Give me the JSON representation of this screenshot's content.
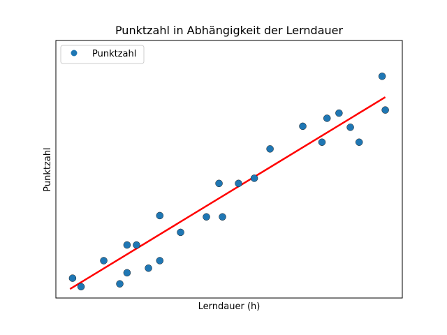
{
  "chart_data": {
    "type": "scatter",
    "title": "Punktzahl in Abhängigkeit der Lerndauer",
    "xlabel": "Lerndauer (h)",
    "ylabel": "Punktzahl",
    "xticks": "hidden",
    "yticks": "hidden",
    "grid": false,
    "legend": {
      "placement": "top-left",
      "entries": [
        "Punktzahl"
      ]
    },
    "xlim": [
      0,
      110
    ],
    "ylim": [
      0,
      100
    ],
    "colors": {
      "points": "#1f77b4",
      "point_edge": "#1a1a1a",
      "fit_line": "#ff0000",
      "axes": "#000000",
      "background": "#ffffff"
    },
    "series": [
      {
        "name": "Punktzahl",
        "kind": "scatter",
        "points": [
          {
            "x": 5.3,
            "y": 7.7
          },
          {
            "x": 8.0,
            "y": 4.4
          },
          {
            "x": 15.2,
            "y": 14.5
          },
          {
            "x": 20.3,
            "y": 5.5
          },
          {
            "x": 22.6,
            "y": 9.8
          },
          {
            "x": 22.6,
            "y": 20.6
          },
          {
            "x": 25.6,
            "y": 20.6
          },
          {
            "x": 29.4,
            "y": 11.6
          },
          {
            "x": 33.0,
            "y": 14.5
          },
          {
            "x": 33.0,
            "y": 32.0
          },
          {
            "x": 39.6,
            "y": 25.5
          },
          {
            "x": 47.8,
            "y": 31.5
          },
          {
            "x": 51.8,
            "y": 44.5
          },
          {
            "x": 52.9,
            "y": 31.5
          },
          {
            "x": 58.0,
            "y": 44.5
          },
          {
            "x": 63.0,
            "y": 46.5
          },
          {
            "x": 68.0,
            "y": 57.9
          },
          {
            "x": 78.4,
            "y": 66.7
          },
          {
            "x": 84.5,
            "y": 60.5
          },
          {
            "x": 86.1,
            "y": 69.8
          },
          {
            "x": 89.9,
            "y": 71.8
          },
          {
            "x": 93.5,
            "y": 66.3
          },
          {
            "x": 96.3,
            "y": 60.5
          },
          {
            "x": 103.6,
            "y": 86.1
          },
          {
            "x": 104.6,
            "y": 73.0
          }
        ]
      },
      {
        "name": "",
        "kind": "line",
        "points": [
          {
            "x": 4.5,
            "y": 3.5
          },
          {
            "x": 104.6,
            "y": 78.0
          }
        ]
      }
    ]
  }
}
